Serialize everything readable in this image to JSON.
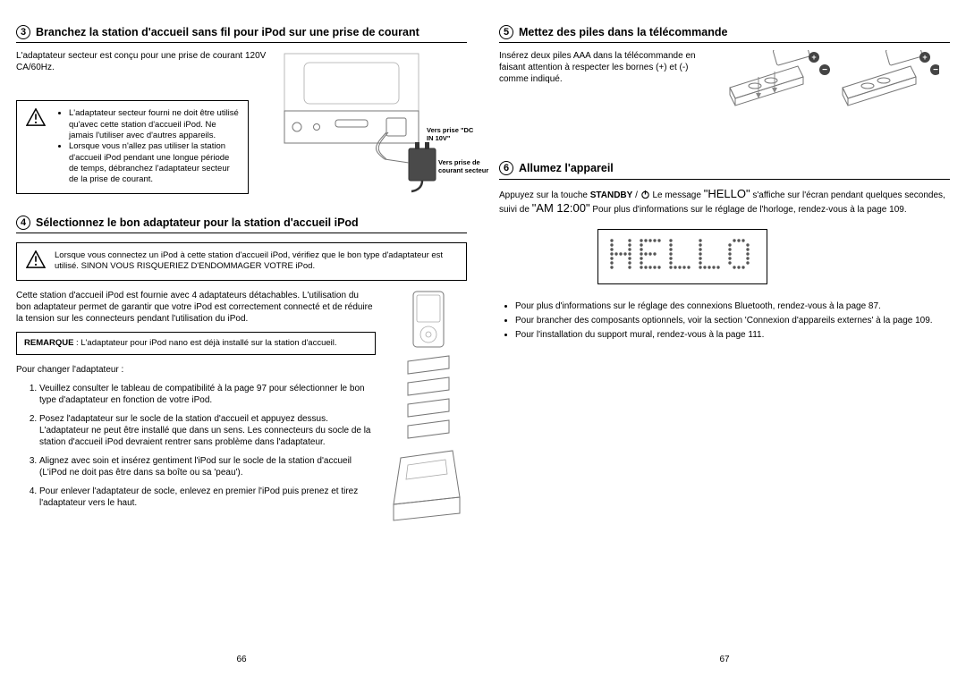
{
  "left": {
    "step3": {
      "num": "3",
      "title": "Branchez la station d'accueil sans fil pour iPod sur une prise de courant",
      "intro": "L'adaptateur secteur est conçu pour une prise de courant 120V CA/60Hz.",
      "warning_items": [
        "L'adaptateur secteur fourni ne doit être utilisé qu'avec cette station d'accueil iPod. Ne jamais l'utiliser avec d'autres appareils.",
        "Lorsque vous n'allez pas utiliser la station d'accueil iPod pendant une longue période de temps, débranchez l'adaptateur secteur de la prise de courant."
      ],
      "label_dc": "Vers prise \"DC IN 10V\"",
      "label_secteur": "Vers prise de courant secteur"
    },
    "step4": {
      "num": "4",
      "title": "Sélectionnez le bon adaptateur pour la station d'accueil iPod",
      "warning": "Lorsque vous connectez un iPod à cette station d'accueil iPod, vérifiez que le bon type d'adaptateur est utilisé. SINON VOUS RISQUERIEZ D'ENDOMMAGER VOTRE iPod.",
      "intro": "Cette station d'accueil iPod est fournie avec 4 adaptateurs détachables. L'utilisation du bon adaptateur permet de garantir que votre iPod est correctement connecté et de réduire la tension sur les connecteurs pendant l'utilisation du iPod.",
      "remark_label": "REMARQUE",
      "remark_text": " : L'adaptateur pour iPod nano est déjà installé sur la station d'accueil.",
      "change_label": "Pour changer l'adaptateur :",
      "steps": [
        "Veuillez consulter le tableau de compatibilité à la page 97 pour sélectionner le bon type d'adaptateur en fonction de votre iPod.",
        "Posez l'adaptateur sur le socle de la station d'accueil et appuyez dessus. L'adaptateur ne peut être installé que dans un sens. Les connecteurs du socle de la station d'accueil iPod devraient rentrer sans problème dans l'adaptateur.",
        "Alignez avec soin et insérez gentiment l'iPod sur le socle de la station d'accueil (L'iPod ne doit pas être dans sa boîte ou sa 'peau').",
        "Pour enlever l'adaptateur de socle, enlevez en premier l'iPod puis prenez et tirez l'adaptateur vers le haut."
      ]
    },
    "page_num": "66"
  },
  "right": {
    "step5": {
      "num": "5",
      "title": "Mettez des piles dans la télécommande",
      "intro": "Insérez deux piles AAA dans la télécommande en faisant attention à respecter les bornes (+) et (-) comme indiqué."
    },
    "step6": {
      "num": "6",
      "title": "Allumez l'appareil",
      "intro_a": "Appuyez sur la touche ",
      "standby": "STANDBY",
      "intro_b": " / ",
      "intro_c": " Le message ",
      "hello_inline": "\"HELLO\"",
      "intro_d": " s'affiche sur l'écran pendant quelques secondes, suivi de ",
      "am_time": "\"AM 12:00\"",
      "intro_e": " Pour plus d'informations sur le réglage de l'horloge, rendez-vous à la page 109.",
      "hello_display": "HELLO",
      "bullets": [
        "Pour plus d'informations sur le réglage des connexions Bluetooth, rendez-vous à la page 87.",
        "Pour brancher des composants optionnels, voir la section 'Connexion d'appareils externes' à la page 109.",
        "Pour l'installation du support mural, rendez-vous à la page 111."
      ]
    },
    "page_num": "67"
  }
}
